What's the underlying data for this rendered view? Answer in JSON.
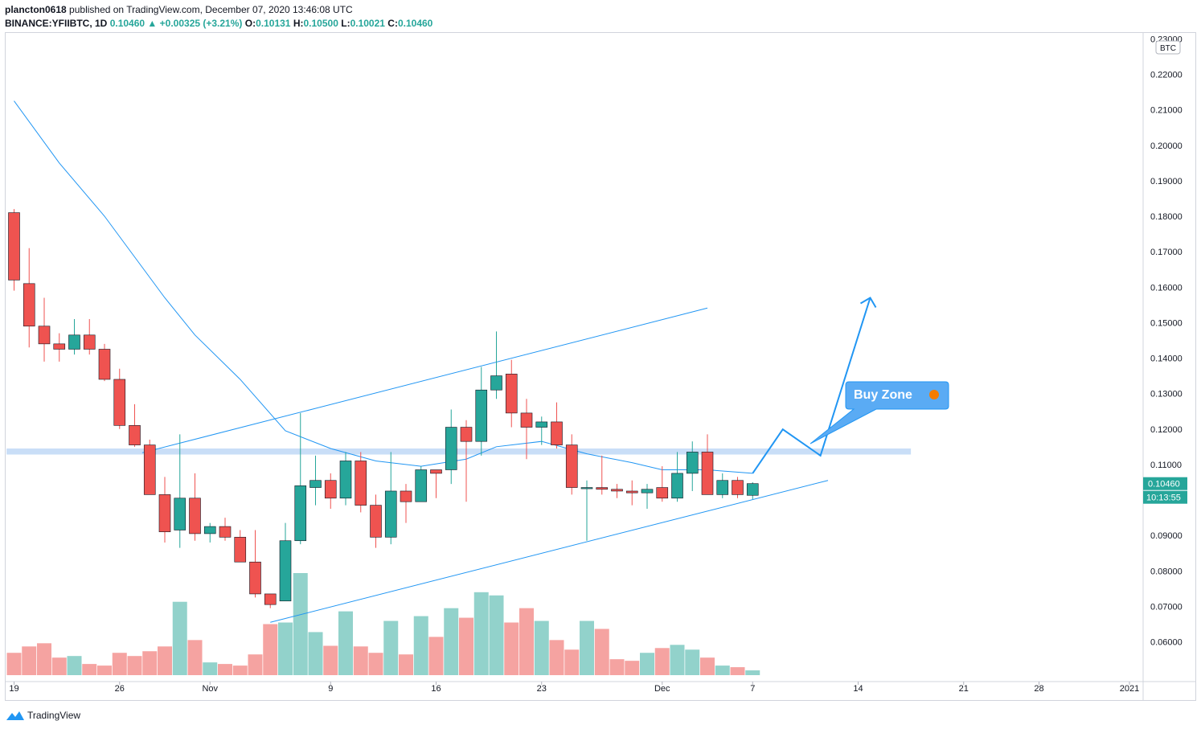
{
  "header": {
    "publisher": "plancton0618",
    "published_text": "published on TradingView.com, December 07, 2020 13:46:08 UTC",
    "symbol": "BINANCE:YFIIBTC, 1D",
    "last": "0.10460",
    "change": "+0.00325 (+3.21%)",
    "o_label": "O:",
    "o_value": "0.10131",
    "h_label": "H:",
    "h_value": "0.10500",
    "l_label": "L:",
    "l_value": "0.10021",
    "c_label": "C:",
    "c_value": "0.10460"
  },
  "footer": {
    "brand": "TradingView"
  },
  "chart_data": {
    "type": "candlestick",
    "currency_label": "BTC",
    "price_tag": "0.10460",
    "countdown_tag": "10:13:55",
    "annotation": "Buy Zone",
    "y_ticks": [
      "0.23000",
      "0.22000",
      "0.21000",
      "0.20000",
      "0.19000",
      "0.18000",
      "0.17000",
      "0.16000",
      "0.15000",
      "0.14000",
      "0.13000",
      "0.12000",
      "0.11000",
      "0.10000",
      "0.09000",
      "0.08000",
      "0.07000",
      "0.06000"
    ],
    "y_tick_values": [
      0.23,
      0.22,
      0.21,
      0.2,
      0.19,
      0.18,
      0.17,
      0.16,
      0.15,
      0.14,
      0.13,
      0.12,
      0.11,
      0.1,
      0.09,
      0.08,
      0.07,
      0.06
    ],
    "x_ticks": [
      {
        "label": "19",
        "day": 0
      },
      {
        "label": "26",
        "day": 7
      },
      {
        "label": "Nov",
        "day": 13
      },
      {
        "label": "9",
        "day": 21
      },
      {
        "label": "16",
        "day": 28
      },
      {
        "label": "23",
        "day": 35
      },
      {
        "label": "Dec",
        "day": 43
      },
      {
        "label": "7",
        "day": 49
      },
      {
        "label": "14",
        "day": 56
      },
      {
        "label": "21",
        "day": 63
      },
      {
        "label": "28",
        "day": 68
      },
      {
        "label": "2021",
        "day": 74
      }
    ],
    "candles": [
      {
        "o": 0.181,
        "h": 0.182,
        "l": 0.159,
        "c": 0.162,
        "v": 0.7
      },
      {
        "o": 0.161,
        "h": 0.171,
        "l": 0.143,
        "c": 0.149,
        "v": 0.9
      },
      {
        "o": 0.149,
        "h": 0.157,
        "l": 0.139,
        "c": 0.144,
        "v": 1.0
      },
      {
        "o": 0.144,
        "h": 0.147,
        "l": 0.139,
        "c": 0.1425,
        "v": 0.55
      },
      {
        "o": 0.1425,
        "h": 0.151,
        "l": 0.141,
        "c": 0.1465,
        "v": 0.6
      },
      {
        "o": 0.1465,
        "h": 0.151,
        "l": 0.141,
        "c": 0.1425,
        "v": 0.35
      },
      {
        "o": 0.1425,
        "h": 0.144,
        "l": 0.1335,
        "c": 0.134,
        "v": 0.3
      },
      {
        "o": 0.134,
        "h": 0.137,
        "l": 0.12,
        "c": 0.121,
        "v": 0.7
      },
      {
        "o": 0.121,
        "h": 0.127,
        "l": 0.115,
        "c": 0.1155,
        "v": 0.6
      },
      {
        "o": 0.1155,
        "h": 0.117,
        "l": 0.1025,
        "c": 0.1015,
        "v": 0.75
      },
      {
        "o": 0.1015,
        "h": 0.1065,
        "l": 0.088,
        "c": 0.091,
        "v": 0.9
      },
      {
        "o": 0.0915,
        "h": 0.1185,
        "l": 0.0865,
        "c": 0.1005,
        "v": 2.3
      },
      {
        "o": 0.1005,
        "h": 0.1075,
        "l": 0.0885,
        "c": 0.0905,
        "v": 1.1
      },
      {
        "o": 0.0905,
        "h": 0.0935,
        "l": 0.088,
        "c": 0.0925,
        "v": 0.4
      },
      {
        "o": 0.0925,
        "h": 0.095,
        "l": 0.0885,
        "c": 0.0895,
        "v": 0.35
      },
      {
        "o": 0.0895,
        "h": 0.0915,
        "l": 0.0825,
        "c": 0.0825,
        "v": 0.3
      },
      {
        "o": 0.0825,
        "h": 0.0915,
        "l": 0.0725,
        "c": 0.0735,
        "v": 0.65
      },
      {
        "o": 0.0735,
        "h": 0.0735,
        "l": 0.0695,
        "c": 0.0705,
        "v": 1.6
      },
      {
        "o": 0.0715,
        "h": 0.0935,
        "l": 0.0715,
        "c": 0.0885,
        "v": 1.65
      },
      {
        "o": 0.0885,
        "h": 0.1245,
        "l": 0.0875,
        "c": 0.104,
        "v": 3.2
      },
      {
        "o": 0.1035,
        "h": 0.1125,
        "l": 0.0985,
        "c": 0.1055,
        "v": 1.35
      },
      {
        "o": 0.1055,
        "h": 0.1075,
        "l": 0.0975,
        "c": 0.1005,
        "v": 0.92
      },
      {
        "o": 0.1005,
        "h": 0.1135,
        "l": 0.0985,
        "c": 0.111,
        "v": 2.0
      },
      {
        "o": 0.111,
        "h": 0.1135,
        "l": 0.0965,
        "c": 0.0985,
        "v": 0.9
      },
      {
        "o": 0.0985,
        "h": 0.1015,
        "l": 0.0865,
        "c": 0.0895,
        "v": 0.7
      },
      {
        "o": 0.0895,
        "h": 0.1135,
        "l": 0.0875,
        "c": 0.1025,
        "v": 1.7
      },
      {
        "o": 0.1025,
        "h": 0.1045,
        "l": 0.0935,
        "c": 0.0995,
        "v": 0.65
      },
      {
        "o": 0.0995,
        "h": 0.1095,
        "l": 0.0995,
        "c": 0.1085,
        "v": 1.85
      },
      {
        "o": 0.1085,
        "h": 0.1085,
        "l": 0.1005,
        "c": 0.1075,
        "v": 1.2
      },
      {
        "o": 0.1085,
        "h": 0.1255,
        "l": 0.1045,
        "c": 0.1205,
        "v": 2.1
      },
      {
        "o": 0.1205,
        "h": 0.1225,
        "l": 0.0995,
        "c": 0.1165,
        "v": 1.8
      },
      {
        "o": 0.1165,
        "h": 0.1375,
        "l": 0.1125,
        "c": 0.131,
        "v": 2.6
      },
      {
        "o": 0.131,
        "h": 0.1475,
        "l": 0.1285,
        "c": 0.135,
        "v": 2.5
      },
      {
        "o": 0.1355,
        "h": 0.1395,
        "l": 0.1205,
        "c": 0.1245,
        "v": 1.65
      },
      {
        "o": 0.1245,
        "h": 0.1285,
        "l": 0.1115,
        "c": 0.1205,
        "v": 2.1
      },
      {
        "o": 0.1205,
        "h": 0.1235,
        "l": 0.1155,
        "c": 0.122,
        "v": 1.7
      },
      {
        "o": 0.122,
        "h": 0.1275,
        "l": 0.1145,
        "c": 0.1155,
        "v": 1.1
      },
      {
        "o": 0.1155,
        "h": 0.1185,
        "l": 0.1015,
        "c": 0.1035,
        "v": 0.8
      },
      {
        "o": 0.1035,
        "h": 0.1055,
        "l": 0.0885,
        "c": 0.1035,
        "v": 1.7
      },
      {
        "o": 0.1035,
        "h": 0.1125,
        "l": 0.1015,
        "c": 0.103,
        "v": 1.45
      },
      {
        "o": 0.103,
        "h": 0.1045,
        "l": 0.1005,
        "c": 0.1025,
        "v": 0.5
      },
      {
        "o": 0.1025,
        "h": 0.1055,
        "l": 0.0985,
        "c": 0.102,
        "v": 0.45
      },
      {
        "o": 0.102,
        "h": 0.1045,
        "l": 0.0975,
        "c": 0.103,
        "v": 0.7
      },
      {
        "o": 0.1035,
        "h": 0.1095,
        "l": 0.0995,
        "c": 0.1005,
        "v": 0.85
      },
      {
        "o": 0.1005,
        "h": 0.1135,
        "l": 0.0995,
        "c": 0.1075,
        "v": 0.95
      },
      {
        "o": 0.1075,
        "h": 0.1165,
        "l": 0.1025,
        "c": 0.1135,
        "v": 0.8
      },
      {
        "o": 0.1135,
        "h": 0.1185,
        "l": 0.1015,
        "c": 0.1015,
        "v": 0.55
      },
      {
        "o": 0.1015,
        "h": 0.1075,
        "l": 0.1005,
        "c": 0.1055,
        "v": 0.3
      },
      {
        "o": 0.1055,
        "h": 0.1065,
        "l": 0.1005,
        "c": 0.1015,
        "v": 0.25
      },
      {
        "o": 0.1013,
        "h": 0.105,
        "l": 0.1002,
        "c": 0.1046,
        "v": 0.15
      }
    ],
    "ma_line": [
      {
        "day": 0,
        "p": 0.2125
      },
      {
        "day": 3,
        "p": 0.195
      },
      {
        "day": 6,
        "p": 0.18
      },
      {
        "day": 10,
        "p": 0.157
      },
      {
        "day": 12,
        "p": 0.1465
      },
      {
        "day": 15,
        "p": 0.134
      },
      {
        "day": 18,
        "p": 0.1195
      },
      {
        "day": 21,
        "p": 0.1145
      },
      {
        "day": 24,
        "p": 0.111
      },
      {
        "day": 27,
        "p": 0.1095
      },
      {
        "day": 30,
        "p": 0.1115
      },
      {
        "day": 32,
        "p": 0.115
      },
      {
        "day": 35,
        "p": 0.1165
      },
      {
        "day": 38,
        "p": 0.113
      },
      {
        "day": 41,
        "p": 0.1105
      },
      {
        "day": 43,
        "p": 0.1085
      },
      {
        "day": 46,
        "p": 0.1085
      },
      {
        "day": 49,
        "p": 0.1075
      }
    ],
    "trendlines": [
      {
        "from": {
          "day": 8.5,
          "p": 0.1133
        },
        "to": {
          "day": 46,
          "p": 0.1541
        }
      },
      {
        "from": {
          "day": 17,
          "p": 0.0655
        },
        "to": {
          "day": 54,
          "p": 0.1055
        }
      }
    ],
    "resistance_zone": {
      "from_day": -0.5,
      "to_day": 59.5,
      "p_low": 0.1128,
      "p_high": 0.1145
    },
    "projection": [
      {
        "day": 49,
        "p": 0.1075
      },
      {
        "day": 51,
        "p": 0.1199
      },
      {
        "day": 53.5,
        "p": 0.1125
      },
      {
        "day": 56.8,
        "p": 0.157
      }
    ],
    "colors": {
      "up": "#26a69a",
      "down": "#ef5350",
      "vol_up": "#92d2cb",
      "vol_down": "#f5a3a1",
      "line": "#2196f3",
      "zone": "#bbd6f5"
    }
  }
}
